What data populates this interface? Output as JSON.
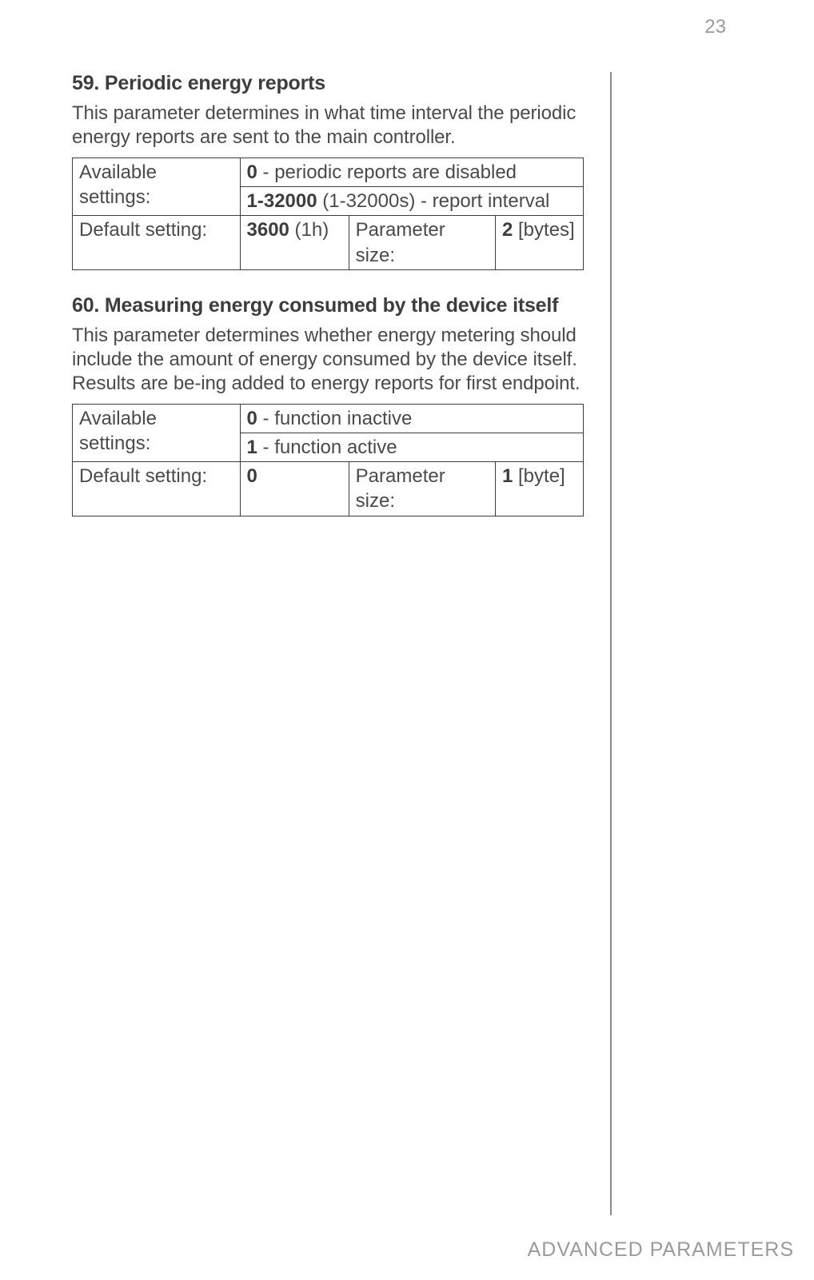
{
  "page_number": "23",
  "footer_text": "ADVANCED PARAMETERS",
  "sections": [
    {
      "title": "59. Periodic energy reports",
      "description": "This parameter determines in what time interval the periodic energy reports are sent to the main controller.",
      "table": {
        "available_label": "Available settings:",
        "available_rows": [
          {
            "bold": "0",
            "rest": " - periodic reports are disabled"
          },
          {
            "bold": "1-32000",
            "rest": " (1-32000s) - report interval"
          }
        ],
        "default_label": "Default setting:",
        "default_value_bold": "3600",
        "default_value_rest": " (1h)",
        "param_size_label": "Parameter size:",
        "param_size_bold": "2",
        "param_size_rest": " [bytes]"
      }
    },
    {
      "title": "60. Measuring energy consumed by the device itself",
      "description": "This parameter determines whether energy metering should include the amount of energy consumed by the device itself. Results are be-ing added to energy reports for first endpoint.",
      "table": {
        "available_label": "Available settings:",
        "available_rows": [
          {
            "bold": "0",
            "rest": " - function inactive"
          },
          {
            "bold": "1",
            "rest": " - function active"
          }
        ],
        "default_label": "Default setting:",
        "default_value_bold": "0",
        "default_value_rest": "",
        "param_size_label": "Parameter size:",
        "param_size_bold": "1",
        "param_size_rest": " [byte]"
      }
    }
  ],
  "styling": {
    "background_color": "#ffffff",
    "text_color": "#4a4a4a",
    "heading_color": "#3d3d3d",
    "border_color": "#3d3d3d",
    "page_number_color": "#9a9a9a",
    "footer_color": "#9a9a9a",
    "vline_color": "#8a8a8a",
    "body_fontsize": 24,
    "title_fontsize": 25,
    "footer_fontsize": 25,
    "col_widths": {
      "label": 200,
      "val1": 130,
      "val2": 175,
      "val3": 105
    }
  }
}
